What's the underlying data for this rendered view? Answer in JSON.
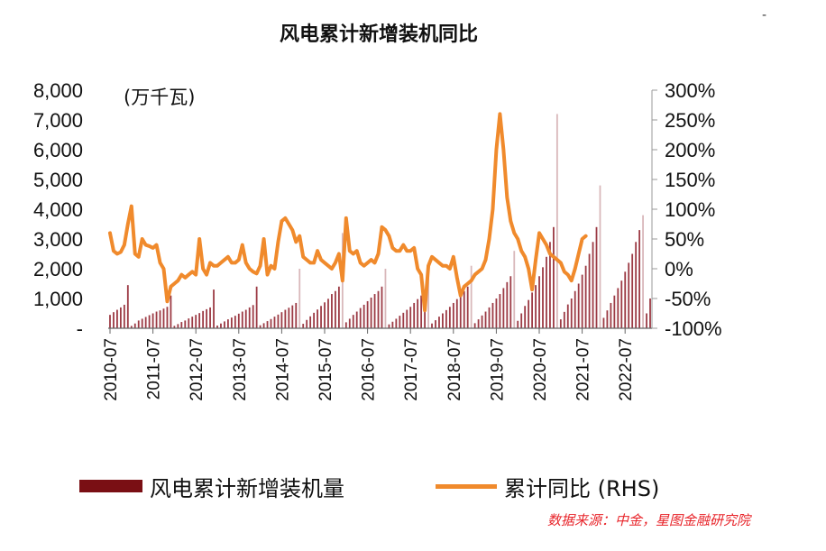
{
  "chart_data": {
    "type": "bar+line",
    "title": "风电累计新增装机同比",
    "unit_label": "(万千瓦)",
    "source": "数据来源：中金，星图金融研究院",
    "left_axis": {
      "ylim": [
        0,
        8000
      ],
      "tick_labels": [
        "-",
        "1,000",
        "2,000",
        "3,000",
        "4,000",
        "5,000",
        "6,000",
        "7,000",
        "8,000"
      ]
    },
    "right_axis": {
      "ylim": [
        -100,
        300
      ],
      "tick_labels": [
        "-100%",
        "-50%",
        "0%",
        "50%",
        "100%",
        "150%",
        "200%",
        "250%",
        "300%"
      ]
    },
    "x_tick_labels": [
      "2010-07",
      "2011-07",
      "2012-07",
      "2013-07",
      "2014-07",
      "2015-07",
      "2016-07",
      "2017-07",
      "2018-07",
      "2019-07",
      "2020-07",
      "2021-07",
      "2022-07"
    ],
    "x_start": "2010-07",
    "x_end": "2023-06",
    "legend": [
      {
        "label": "风电累计新增装机量",
        "color": "#7a0f14"
      },
      {
        "label": "累计同比 (RHS)",
        "color": "#f08a2c"
      }
    ],
    "series": [
      {
        "name": "风电累计新增装机量",
        "axis": "left",
        "values": [
          450,
          540,
          620,
          700,
          790,
          1450,
          80,
          160,
          260,
          320,
          380,
          440,
          500,
          560,
          600,
          660,
          720,
          1100,
          80,
          140,
          210,
          260,
          330,
          390,
          450,
          510,
          580,
          640,
          700,
          1300,
          90,
          160,
          230,
          300,
          360,
          420,
          490,
          560,
          620,
          700,
          780,
          1400,
          100,
          170,
          240,
          310,
          390,
          460,
          540,
          620,
          690,
          770,
          850,
          2000,
          150,
          280,
          400,
          520,
          630,
          750,
          870,
          990,
          1150,
          1250,
          1400,
          3200,
          200,
          320,
          450,
          560,
          680,
          790,
          910,
          1030,
          1150,
          1250,
          1400,
          2000,
          130,
          220,
          320,
          420,
          520,
          620,
          720,
          850,
          980,
          1100,
          1250,
          2000,
          160,
          270,
          390,
          500,
          610,
          720,
          850,
          980,
          1100,
          1250,
          1400,
          2100,
          170,
          300,
          430,
          560,
          700,
          850,
          1000,
          1150,
          1350,
          1550,
          1750,
          2600,
          250,
          500,
          750,
          950,
          1200,
          1450,
          1750,
          2050,
          2400,
          2900,
          3400,
          7200,
          300,
          550,
          800,
          1000,
          1250,
          1500,
          1800,
          2100,
          2500,
          2900,
          3400,
          4800,
          350,
          600,
          850,
          1100,
          1350,
          1600,
          1900,
          2200,
          2500,
          2900,
          3300,
          3800,
          500,
          1000
        ]
      },
      {
        "name": "累计同比 (RHS)",
        "axis": "right",
        "values": [
          60,
          30,
          25,
          28,
          40,
          75,
          105,
          25,
          20,
          50,
          40,
          38,
          35,
          40,
          10,
          0,
          -55,
          -30,
          -25,
          -20,
          -10,
          -15,
          -10,
          -5,
          -10,
          50,
          0,
          -10,
          10,
          5,
          5,
          10,
          15,
          20,
          10,
          10,
          15,
          40,
          10,
          0,
          -5,
          -8,
          5,
          50,
          -10,
          5,
          0,
          45,
          80,
          85,
          75,
          65,
          45,
          55,
          20,
          15,
          10,
          10,
          30,
          15,
          10,
          5,
          0,
          10,
          25,
          -20,
          85,
          30,
          25,
          30,
          10,
          5,
          10,
          15,
          10,
          25,
          70,
          65,
          55,
          35,
          30,
          30,
          40,
          30,
          30,
          35,
          0,
          -10,
          -70,
          5,
          20,
          15,
          10,
          5,
          5,
          0,
          20,
          -15,
          -45,
          -30,
          -25,
          -20,
          -10,
          -5,
          0,
          15,
          50,
          100,
          200,
          260,
          200,
          120,
          80,
          60,
          50,
          30,
          20,
          0,
          -35,
          15,
          60,
          50,
          40,
          25,
          20,
          15,
          10,
          -5,
          -10,
          -20,
          0,
          25,
          50,
          55
        ]
      }
    ]
  }
}
